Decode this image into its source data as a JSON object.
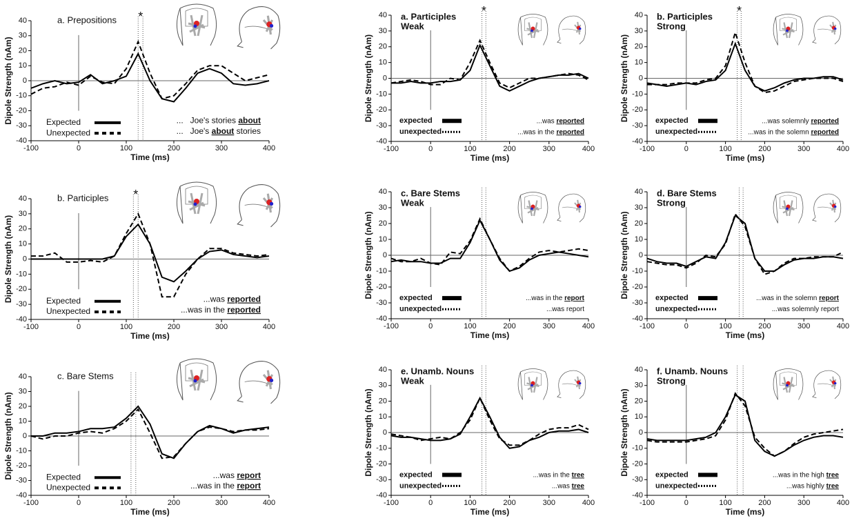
{
  "chart_data": [
    {
      "type": "line",
      "title": "a. Prepositions",
      "note": "*",
      "x_label": "Time (ms)",
      "y_label": "Dipole Strength (nAm)",
      "x": [
        -100,
        -75,
        -50,
        -25,
        0,
        25,
        50,
        75,
        100,
        125,
        150,
        175,
        200,
        225,
        250,
        275,
        300,
        325,
        350,
        375,
        400
      ],
      "series": [
        {
          "name": "Expected",
          "color": "#000",
          "style": "solid",
          "values": [
            -5,
            -2,
            0,
            -2,
            -1,
            4,
            -2,
            0,
            3,
            18,
            0,
            -12,
            -14,
            -5,
            5,
            8,
            5,
            -2,
            -3,
            -2,
            0
          ]
        },
        {
          "name": "Unexpected",
          "color": "#000",
          "style": "dashed",
          "values": [
            -9,
            -5,
            -4,
            -1,
            -3,
            3,
            -1,
            -2,
            8,
            26,
            5,
            -12,
            -10,
            -2,
            7,
            10,
            10,
            5,
            0,
            2,
            4
          ]
        }
      ],
      "markers": [
        125,
        135
      ],
      "annotations": [
        [
          {
            "text": "...   Joe's stories "
          },
          {
            "text": "about",
            "bold": true
          }
        ],
        [
          {
            "text": "...   Joe's "
          },
          {
            "text": "about",
            "bold": true
          },
          {
            "text": " stories"
          }
        ]
      ],
      "xlim": [
        -100,
        400
      ],
      "xticks": [
        -100,
        0,
        100,
        200,
        300,
        400
      ],
      "ylim": [
        -40,
        40
      ],
      "yticks": [
        -40,
        -30,
        -20,
        -10,
        0,
        10,
        20,
        30,
        40
      ]
    },
    {
      "type": "line",
      "title": "b. Participles",
      "note": "*",
      "x_label": "Time (ms)",
      "y_label": "Dipole Strength (nAm)",
      "x": [
        -100,
        -75,
        -50,
        -25,
        0,
        25,
        50,
        75,
        100,
        125,
        150,
        175,
        200,
        225,
        250,
        275,
        300,
        325,
        350,
        375,
        400
      ],
      "series": [
        {
          "name": "Expected",
          "color": "#000",
          "style": "solid",
          "values": [
            0,
            0,
            0,
            0,
            0,
            0,
            0,
            2,
            15,
            23,
            10,
            -12,
            -15,
            -8,
            0,
            5,
            6,
            3,
            2,
            1,
            2
          ]
        },
        {
          "name": "Unexpected",
          "color": "#000",
          "style": "dashed",
          "values": [
            2,
            2,
            4,
            -2,
            -2,
            -1,
            -2,
            2,
            17,
            30,
            10,
            -25,
            -25,
            -10,
            0,
            7,
            7,
            4,
            3,
            2,
            3
          ]
        }
      ],
      "markers": [
        115,
        125
      ],
      "annotations": [
        [
          {
            "text": "...was "
          },
          {
            "text": "reported",
            "bold": true
          }
        ],
        [
          {
            "text": "...was in the "
          },
          {
            "text": "reported",
            "bold": true
          }
        ]
      ],
      "xlim": [
        -100,
        400
      ],
      "xticks": [
        -100,
        0,
        100,
        200,
        300,
        400
      ],
      "ylim": [
        -40,
        40
      ],
      "yticks": [
        -40,
        -30,
        -20,
        -10,
        0,
        10,
        20,
        30,
        40
      ]
    },
    {
      "type": "line",
      "title": "c. Bare Stems",
      "x_label": "Time (ms)",
      "y_label": "Dipole Strength (nAm)",
      "x": [
        -100,
        -75,
        -50,
        -25,
        0,
        25,
        50,
        75,
        100,
        125,
        150,
        175,
        200,
        225,
        250,
        275,
        300,
        325,
        350,
        375,
        400
      ],
      "series": [
        {
          "name": "Expected",
          "color": "#000",
          "style": "solid",
          "values": [
            0,
            0,
            2,
            2,
            3,
            5,
            5,
            6,
            12,
            20,
            8,
            -12,
            -15,
            -5,
            3,
            7,
            5,
            2,
            4,
            5,
            6
          ]
        },
        {
          "name": "Unexpected",
          "color": "#000",
          "style": "dashed",
          "values": [
            0,
            -2,
            0,
            0,
            2,
            3,
            2,
            5,
            10,
            18,
            2,
            -15,
            -14,
            -5,
            3,
            6,
            5,
            3,
            4,
            4,
            5
          ]
        }
      ],
      "markers": [
        110,
        120
      ],
      "annotations": [
        [
          {
            "text": "...was "
          },
          {
            "text": "report",
            "bold": true
          }
        ],
        [
          {
            "text": "...was in the "
          },
          {
            "text": "report",
            "bold": true
          }
        ]
      ],
      "xlim": [
        -100,
        400
      ],
      "xticks": [
        -100,
        0,
        100,
        200,
        300,
        400
      ],
      "ylim": [
        -40,
        40
      ],
      "yticks": [
        -40,
        -30,
        -20,
        -10,
        0,
        10,
        20,
        30,
        40
      ]
    },
    {
      "type": "line",
      "title": "a. Participles",
      "subtitle": "Weak",
      "note": "*",
      "x_label": "Time (ms)",
      "y_label": "Dipole Strength (nAm)",
      "x": [
        -100,
        -75,
        -50,
        -25,
        0,
        25,
        50,
        75,
        100,
        125,
        150,
        175,
        200,
        225,
        250,
        275,
        300,
        325,
        350,
        375,
        400
      ],
      "series": [
        {
          "name": "expected",
          "color": "#000",
          "style": "solid",
          "values": [
            -3,
            -3,
            -2,
            -3,
            -3,
            -2,
            -2,
            -1,
            5,
            21,
            8,
            -5,
            -8,
            -5,
            -2,
            0,
            1,
            2,
            2,
            3,
            0
          ]
        },
        {
          "name": "unexpected",
          "color": "#000",
          "style": "dashed",
          "values": [
            -3,
            -2,
            -1,
            -2,
            -4,
            -4,
            0,
            -1,
            10,
            24,
            10,
            -3,
            -6,
            -3,
            0,
            0,
            1,
            2,
            3,
            2,
            -1
          ]
        }
      ],
      "markers": [
        130,
        140
      ],
      "annotations": [
        [
          {
            "text": "...was "
          },
          {
            "text": "reported",
            "bold": true
          }
        ],
        [
          {
            "text": "...was in the "
          },
          {
            "text": "reported",
            "bold": true
          }
        ]
      ],
      "xlim": [
        -100,
        400
      ],
      "xticks": [
        -100,
        0,
        100,
        200,
        300,
        400
      ],
      "ylim": [
        -40,
        40
      ],
      "yticks": [
        -40,
        -30,
        -20,
        -10,
        0,
        10,
        20,
        30,
        40
      ]
    },
    {
      "type": "line",
      "title": "b. Participles",
      "subtitle": "Strong",
      "note": "*",
      "x_label": "Time (ms)",
      "y_label": "Dipole Strength (nAm)",
      "x": [
        -100,
        -75,
        -50,
        -25,
        0,
        25,
        50,
        75,
        100,
        125,
        150,
        175,
        200,
        225,
        250,
        275,
        300,
        325,
        350,
        375,
        400
      ],
      "series": [
        {
          "name": "expected",
          "color": "#000",
          "style": "solid",
          "values": [
            -3,
            -4,
            -5,
            -4,
            -3,
            -4,
            -2,
            -1,
            5,
            22,
            5,
            -5,
            -8,
            -6,
            -3,
            -1,
            0,
            0,
            1,
            1,
            -1
          ]
        },
        {
          "name": "unexpected",
          "color": "#000",
          "style": "dashed",
          "values": [
            -4,
            -4,
            -4,
            -3,
            -3,
            -3,
            -1,
            0,
            8,
            29,
            10,
            -5,
            -9,
            -8,
            -5,
            -2,
            -1,
            0,
            0,
            0,
            -2
          ]
        }
      ],
      "markers": [
        130,
        140
      ],
      "annotations": [
        [
          {
            "text": "...was solemnly "
          },
          {
            "text": "reported",
            "bold": true
          }
        ],
        [
          {
            "text": "...was in the solemn "
          },
          {
            "text": "reported",
            "bold": true
          }
        ]
      ],
      "xlim": [
        -100,
        400
      ],
      "xticks": [
        -100,
        0,
        100,
        200,
        300,
        400
      ],
      "ylim": [
        -40,
        40
      ],
      "yticks": [
        -40,
        -30,
        -20,
        -10,
        0,
        10,
        20,
        30,
        40
      ]
    },
    {
      "type": "line",
      "title": "c. Bare Stems",
      "subtitle": "Weak",
      "x_label": "Time (ms)",
      "y_label": "Dipole Strength (nAm)",
      "x": [
        -100,
        -75,
        -50,
        -25,
        0,
        25,
        50,
        75,
        100,
        125,
        150,
        175,
        200,
        225,
        250,
        275,
        300,
        325,
        350,
        375,
        400
      ],
      "series": [
        {
          "name": "expected",
          "color": "#000",
          "style": "solid",
          "values": [
            -4,
            -3,
            -4,
            -4,
            -5,
            -5,
            -2,
            -2,
            8,
            22,
            10,
            -3,
            -10,
            -8,
            -3,
            0,
            1,
            2,
            1,
            0,
            -1
          ]
        },
        {
          "name": "unexpected",
          "color": "#000",
          "style": "dashed",
          "values": [
            -2,
            -4,
            -4,
            -2,
            -5,
            -6,
            2,
            1,
            9,
            23,
            10,
            -2,
            -10,
            -7,
            -2,
            2,
            3,
            2,
            3,
            4,
            3
          ]
        }
      ],
      "markers": [
        130,
        140
      ],
      "annotations": [
        [
          {
            "text": "...was in the "
          },
          {
            "text": "report",
            "bold": true
          }
        ],
        [
          {
            "text": "...was report"
          }
        ]
      ],
      "xlim": [
        -100,
        400
      ],
      "xticks": [
        -100,
        0,
        100,
        200,
        300,
        400
      ],
      "ylim": [
        -40,
        40
      ],
      "yticks": [
        -40,
        -30,
        -20,
        -10,
        0,
        10,
        20,
        30,
        40
      ]
    },
    {
      "type": "line",
      "title": "d. Bare Stems",
      "subtitle": "Strong",
      "x_label": "Time (ms)",
      "y_label": "Dipole Strength (nAm)",
      "x": [
        -100,
        -75,
        -50,
        -25,
        0,
        25,
        50,
        75,
        100,
        125,
        150,
        175,
        200,
        225,
        250,
        275,
        300,
        325,
        350,
        375,
        400
      ],
      "series": [
        {
          "name": "expected",
          "color": "#000",
          "style": "solid",
          "values": [
            -2,
            -4,
            -5,
            -5,
            -7,
            -4,
            -1,
            -2,
            8,
            25,
            20,
            -2,
            -10,
            -10,
            -6,
            -3,
            -2,
            -2,
            -1,
            -1,
            -2
          ]
        },
        {
          "name": "unexpected",
          "color": "#000",
          "style": "dashed",
          "values": [
            -4,
            -5,
            -6,
            -6,
            -8,
            -5,
            0,
            -1,
            7,
            26,
            18,
            -2,
            -12,
            -10,
            -5,
            -2,
            -2,
            -1,
            -1,
            -1,
            2
          ]
        }
      ],
      "markers": [
        135,
        145
      ],
      "annotations": [
        [
          {
            "text": "...was in the solemn "
          },
          {
            "text": "report",
            "bold": true
          }
        ],
        [
          {
            "text": "...was solemnly report"
          }
        ]
      ],
      "xlim": [
        -100,
        400
      ],
      "xticks": [
        -100,
        0,
        100,
        200,
        300,
        400
      ],
      "ylim": [
        -40,
        40
      ],
      "yticks": [
        -40,
        -30,
        -20,
        -10,
        0,
        10,
        20,
        30,
        40
      ]
    },
    {
      "type": "line",
      "title": "e. Unamb. Nouns",
      "subtitle": "Weak",
      "x_label": "Time (ms)",
      "y_label": "Dipole Strength (nAm)",
      "x": [
        -100,
        -75,
        -50,
        -25,
        0,
        25,
        50,
        75,
        100,
        125,
        150,
        175,
        200,
        225,
        250,
        275,
        300,
        325,
        350,
        375,
        400
      ],
      "series": [
        {
          "name": "expected",
          "color": "#000",
          "style": "solid",
          "values": [
            -2,
            -3,
            -3,
            -4,
            -5,
            -5,
            -4,
            -1,
            10,
            22,
            10,
            -3,
            -10,
            -9,
            -5,
            -3,
            0,
            1,
            1,
            2,
            0
          ]
        },
        {
          "name": "unexpected",
          "color": "#000",
          "style": "dashed",
          "values": [
            -1,
            -2,
            -3,
            -5,
            -4,
            -3,
            -4,
            0,
            8,
            22,
            8,
            -4,
            -8,
            -8,
            -5,
            -1,
            2,
            3,
            3,
            5,
            2
          ]
        }
      ],
      "markers": [
        130,
        140
      ],
      "annotations": [
        [
          {
            "text": "...was in the "
          },
          {
            "text": "tree",
            "bold": true
          }
        ],
        [
          {
            "text": "...was "
          },
          {
            "text": "tree",
            "bold": true
          }
        ]
      ],
      "xlim": [
        -100,
        400
      ],
      "xticks": [
        -100,
        0,
        100,
        200,
        300,
        400
      ],
      "ylim": [
        -40,
        40
      ],
      "yticks": [
        -40,
        -30,
        -20,
        -10,
        0,
        10,
        20,
        30,
        40
      ]
    },
    {
      "type": "line",
      "title": "f. Unamb. Nouns",
      "subtitle": "Strong",
      "x_label": "Time (ms)",
      "y_label": "Dipole Strength (nAm)",
      "x": [
        -100,
        -75,
        -50,
        -25,
        0,
        25,
        50,
        75,
        100,
        125,
        150,
        175,
        200,
        225,
        250,
        275,
        300,
        325,
        350,
        375,
        400
      ],
      "series": [
        {
          "name": "expected",
          "color": "#000",
          "style": "solid",
          "values": [
            -4,
            -5,
            -5,
            -5,
            -5,
            -4,
            -3,
            0,
            10,
            24,
            20,
            -5,
            -12,
            -15,
            -12,
            -8,
            -5,
            -3,
            -2,
            -2,
            -3
          ]
        },
        {
          "name": "unexpected",
          "color": "#000",
          "style": "dashed",
          "values": [
            -5,
            -6,
            -6,
            -6,
            -6,
            -5,
            -4,
            -2,
            8,
            25,
            17,
            -3,
            -10,
            -15,
            -12,
            -7,
            -3,
            -1,
            0,
            1,
            2
          ]
        }
      ],
      "markers": [
        130,
        145
      ],
      "annotations": [
        [
          {
            "text": "...was in the high "
          },
          {
            "text": "tree",
            "bold": true
          }
        ],
        [
          {
            "text": "...was highly "
          },
          {
            "text": "tree",
            "bold": true
          }
        ]
      ],
      "xlim": [
        -100,
        400
      ],
      "xticks": [
        -100,
        0,
        100,
        200,
        300,
        400
      ],
      "ylim": [
        -40,
        40
      ],
      "yticks": [
        -40,
        -30,
        -20,
        -10,
        0,
        10,
        20,
        30,
        40
      ]
    }
  ]
}
